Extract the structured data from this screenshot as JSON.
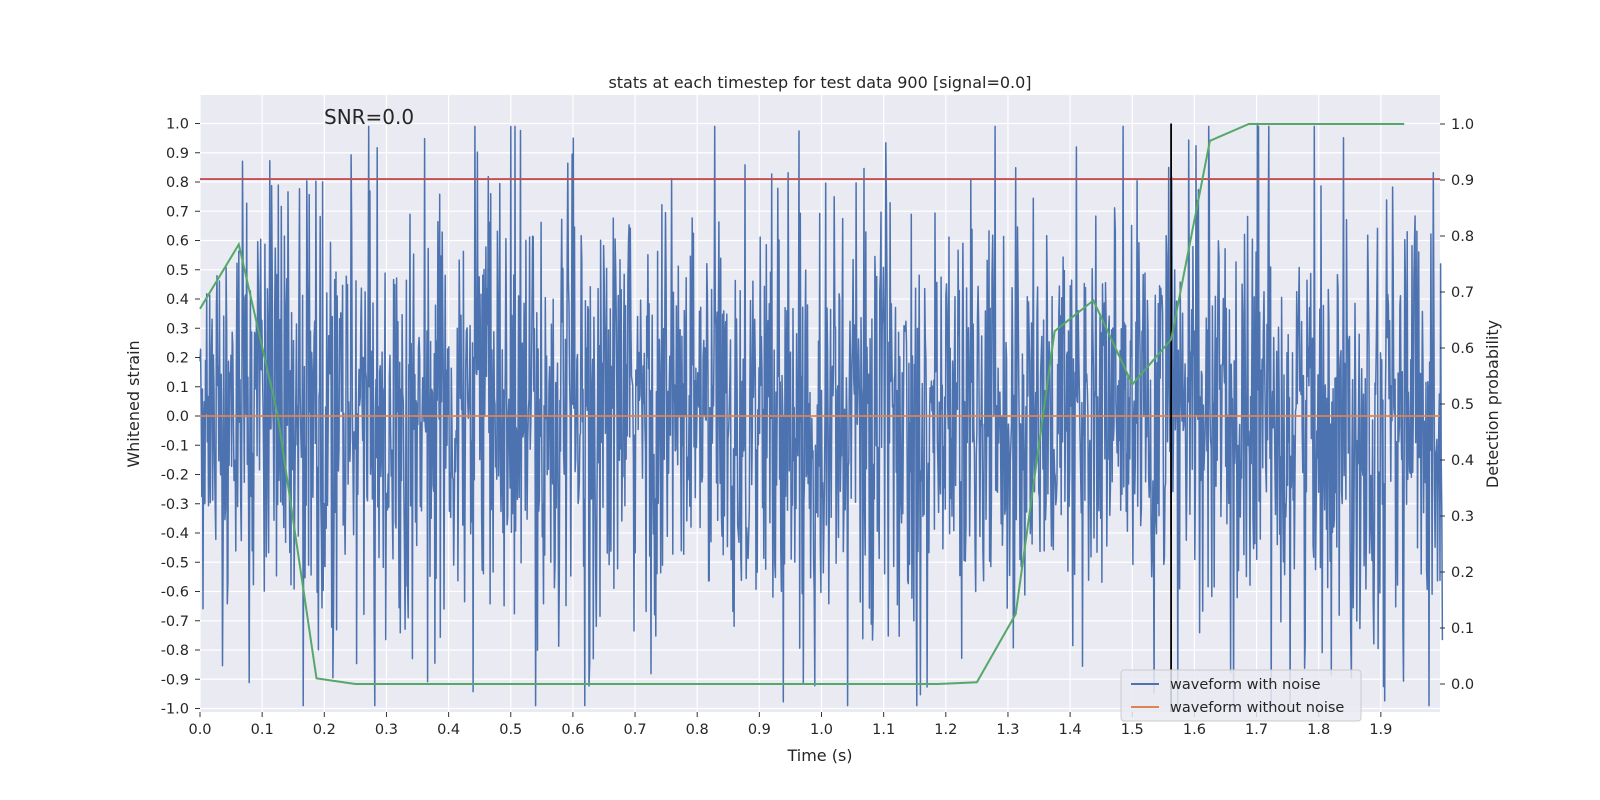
{
  "chart_data": {
    "type": "line",
    "title": "stats at each timestep for test data 900 [signal=0.0]",
    "annotation": "SNR=0.0",
    "xlabel": "Time (s)",
    "ylabel": "Whitened strain",
    "ylabel_right": "Detection probability",
    "xlim": [
      0.0,
      2.0
    ],
    "ylim": [
      -1.05,
      1.09
    ],
    "ylim_right": [
      -0.05,
      1.09
    ],
    "x_ticks": [
      "0.0",
      "0.1",
      "0.2",
      "0.3",
      "0.4",
      "0.5",
      "0.6",
      "0.7",
      "0.8",
      "0.9",
      "1.0",
      "1.1",
      "1.2",
      "1.3",
      "1.4",
      "1.5",
      "1.6",
      "1.7",
      "1.8",
      "1.9"
    ],
    "y_ticks": [
      "1.0",
      "0.9",
      "0.8",
      "0.7",
      "0.6",
      "0.5",
      "0.4",
      "0.3",
      "0.2",
      "0.1",
      "0.0",
      "-0.1",
      "-0.2",
      "-0.3",
      "-0.4",
      "-0.5",
      "-0.6",
      "-0.7",
      "-0.8",
      "-0.9",
      "-1.0"
    ],
    "y_ticks_right": [
      "1.0",
      "0.9",
      "0.8",
      "0.7",
      "0.6",
      "0.5",
      "0.4",
      "0.3",
      "0.2",
      "0.1",
      "0.0"
    ],
    "threshold": 0.81,
    "marker_time": 1.5625,
    "noise": {
      "name": "waveform with noise",
      "color": "#4c72b0",
      "num_samples": 2048,
      "amplitude": 0.38,
      "max_abs": 1.0,
      "description_range": [
        -1.0,
        1.0
      ]
    },
    "clean": {
      "name": "waveform without noise",
      "color": "#dd8452",
      "value": 0.0
    },
    "probability": {
      "name": "Detection probability",
      "color": "#55a868",
      "x": [
        0.0,
        0.0625,
        0.125,
        0.1875,
        0.25,
        0.3125,
        0.375,
        0.4375,
        0.5,
        0.5625,
        0.625,
        0.6875,
        0.75,
        0.8125,
        0.875,
        0.9375,
        1.0,
        1.0625,
        1.125,
        1.1875,
        1.25,
        1.3125,
        1.375,
        1.4375,
        1.5,
        1.5625,
        1.625,
        1.6875,
        1.75,
        1.8125,
        1.875,
        1.9375
      ],
      "y": [
        0.67,
        0.785,
        0.48,
        0.01,
        0.0,
        0.0,
        0.0,
        0.0,
        0.0,
        0.0,
        0.0,
        0.0,
        0.0,
        0.0,
        0.0,
        0.0,
        0.0,
        0.0,
        0.0,
        0.0,
        0.003,
        0.125,
        0.63,
        0.685,
        0.535,
        0.615,
        0.97,
        1.0,
        1.0,
        1.0,
        1.0,
        1.0
      ]
    },
    "threshold_color": "#c44e52",
    "marker_color": "#000000",
    "legend": [
      {
        "label": "waveform with noise",
        "color": "#4c72b0"
      },
      {
        "label": "waveform without noise",
        "color": "#dd8452"
      }
    ],
    "legend_position": "lower-right",
    "grid": true
  }
}
